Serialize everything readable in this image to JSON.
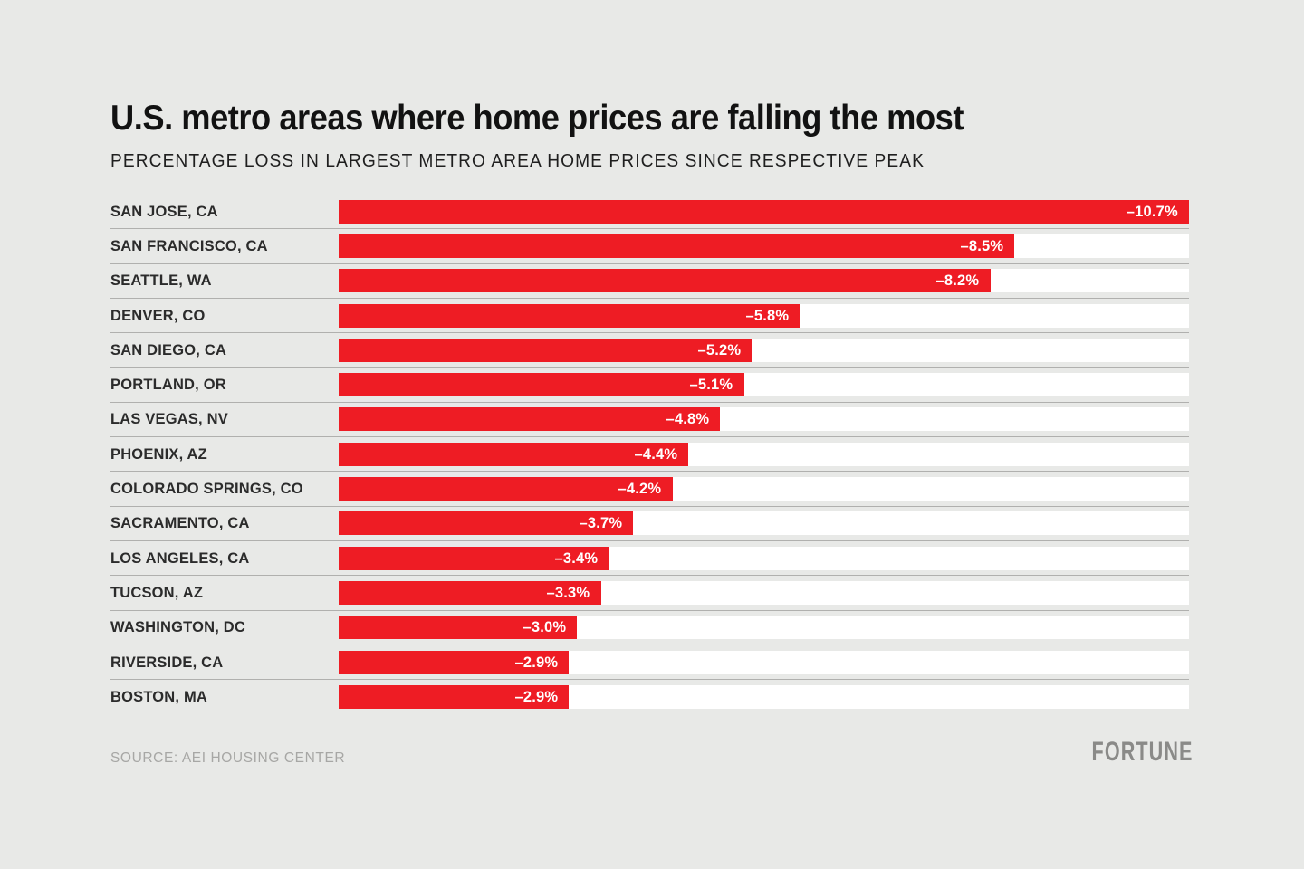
{
  "chart_data": {
    "type": "bar",
    "orientation": "horizontal",
    "title": "U.S. metro areas where home prices are falling the most",
    "subtitle": "PERCENTAGE LOSS IN LARGEST METRO AREA HOME PRICES SINCE RESPECTIVE PEAK",
    "categories": [
      "SAN JOSE, CA",
      "SAN FRANCISCO, CA",
      "SEATTLE, WA",
      "DENVER, CO",
      "SAN DIEGO, CA",
      "PORTLAND, OR",
      "LAS VEGAS, NV",
      "PHOENIX, AZ",
      "COLORADO SPRINGS, CO",
      "SACRAMENTO, CA",
      "LOS ANGELES, CA",
      "TUCSON, AZ",
      "WASHINGTON, DC",
      "RIVERSIDE, CA",
      "BOSTON, MA"
    ],
    "values": [
      -10.7,
      -8.5,
      -8.2,
      -5.8,
      -5.2,
      -5.1,
      -4.8,
      -4.4,
      -4.2,
      -3.7,
      -3.4,
      -3.3,
      -3.0,
      -2.9,
      -2.9
    ],
    "value_labels": [
      "–10.7%",
      "–8.5%",
      "–8.2%",
      "–5.8%",
      "–5.2%",
      "–5.1%",
      "–4.8%",
      "–4.4%",
      "–4.2%",
      "–3.7%",
      "–3.4%",
      "–3.3%",
      "–3.0%",
      "–2.9%",
      "–2.9%"
    ],
    "xlim": [
      -10.7,
      0
    ],
    "bar_scale_max_abs": 10.7,
    "grid": false,
    "legend": false,
    "source": "SOURCE: AEI HOUSING CENTER",
    "brand": "FORTUNE"
  },
  "colors": {
    "background": "#e8e9e7",
    "bar_red": "#ee1c24",
    "bar_track": "#ffffff",
    "separator": "#b0b0ae",
    "heading_text": "#121212",
    "subtitle_text": "#1f1f1f",
    "label_text": "#2b2b2b",
    "value_text": "#ffffff",
    "source_text": "#a7a7a5",
    "logo_text": "#8a8a88"
  }
}
